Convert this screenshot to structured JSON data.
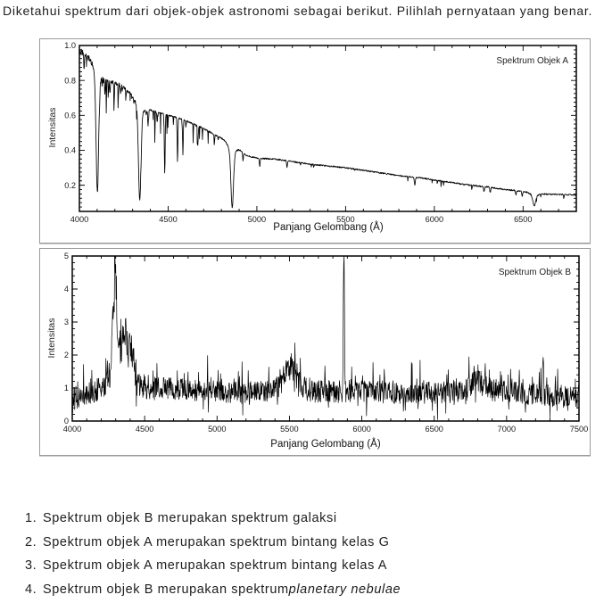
{
  "question": "Diketahui spektrum dari objek-objek astronomi sebagai berikut. Pilihlah pernyataan yang benar.",
  "colors": {
    "trace": "#000000",
    "frame": "#000000",
    "panel_border": "#9a9a9a",
    "text": "#1c1c1c"
  },
  "options": [
    {
      "num": "1.",
      "text": "Spektrum objek B merupakan spektrum galaksi",
      "italic": ""
    },
    {
      "num": "2.",
      "text": "Spektrum objek A merupakan spektrum bintang kelas G",
      "italic": ""
    },
    {
      "num": "3.",
      "text": "Spektrum objek A merupakan spektrum bintang kelas A",
      "italic": ""
    },
    {
      "num": "4.",
      "text": "Spektrum objek B merupakan spektrum ",
      "italic": "planetary nebulae"
    }
  ],
  "chart_data": [
    {
      "type": "line",
      "kind": "stellar_absorption",
      "legend": "Spektrum Objek A",
      "xlabel": "Panjang Gelombang (Å)",
      "ylabel": "Intensitas",
      "xlim": [
        4000,
        6800
      ],
      "ylim": [
        0.05,
        1.0
      ],
      "x_major_values": [
        4000,
        4500,
        5000,
        5500,
        6000,
        6500
      ],
      "x_tick_labels": [
        "4000",
        "4500",
        "5000",
        "5500",
        "6000",
        "6500"
      ],
      "x_minor_step": 100,
      "y_major_values": [
        0.2,
        0.4,
        0.6,
        0.8,
        1.0
      ],
      "y_tick_labels": [
        "0.2",
        "0.4",
        "0.6",
        "0.8",
        "1.0"
      ],
      "y_minor_step": 0.025,
      "sample_step": 1.8,
      "continuum": [
        [
          4000,
          0.97
        ],
        [
          4040,
          0.94
        ],
        [
          4070,
          0.92
        ],
        [
          4150,
          0.8
        ],
        [
          4220,
          0.78
        ],
        [
          4260,
          0.75
        ],
        [
          4300,
          0.72
        ],
        [
          4380,
          0.635
        ],
        [
          4420,
          0.625
        ],
        [
          4500,
          0.6
        ],
        [
          4560,
          0.585
        ],
        [
          4620,
          0.56
        ],
        [
          4700,
          0.525
        ],
        [
          4760,
          0.49
        ],
        [
          4820,
          0.46
        ],
        [
          4880,
          0.43
        ],
        [
          4940,
          0.37
        ],
        [
          5000,
          0.355
        ],
        [
          5100,
          0.35
        ],
        [
          5200,
          0.335
        ],
        [
          5300,
          0.32
        ],
        [
          5400,
          0.31
        ],
        [
          5500,
          0.3
        ],
        [
          5600,
          0.285
        ],
        [
          5700,
          0.27
        ],
        [
          5800,
          0.255
        ],
        [
          5900,
          0.245
        ],
        [
          6000,
          0.23
        ],
        [
          6100,
          0.215
        ],
        [
          6200,
          0.2
        ],
        [
          6300,
          0.19
        ],
        [
          6400,
          0.175
        ],
        [
          6500,
          0.165
        ],
        [
          6600,
          0.15
        ],
        [
          6700,
          0.147
        ],
        [
          6800,
          0.144
        ]
      ],
      "absorption_lines": [
        {
          "name": "H-delta",
          "center": 4101,
          "depth": 0.65,
          "sigma": 7,
          "wing": 0.06,
          "wing_sigma": 22
        },
        {
          "name": "H-gamma",
          "center": 4340,
          "depth": 0.51,
          "sigma": 7,
          "wing": 0.05,
          "wing_sigma": 22
        },
        {
          "name": "H-beta",
          "center": 4861,
          "depth": 0.31,
          "sigma": 7,
          "wing": 0.057,
          "wing_sigma": 20
        },
        {
          "name": "H-alpha",
          "center": 6563,
          "depth": 0.06,
          "sigma": 8,
          "wing": 0.013,
          "wing_sigma": 22
        },
        {
          "name": "HeI-4026",
          "center": 4026,
          "depth": 0.08,
          "sigma": 2
        },
        {
          "name": "FeI-4144",
          "center": 4144,
          "depth": 0.09,
          "sigma": 2
        },
        {
          "name": "CaI-4172",
          "center": 4172,
          "depth": 0.06,
          "sigma": 2
        },
        {
          "name": "4233",
          "center": 4233,
          "depth": 0.05,
          "sigma": 2
        },
        {
          "name": "4387",
          "center": 4387,
          "depth": 0.09,
          "sigma": 2
        },
        {
          "name": "4438",
          "center": 4438,
          "depth": 0.06,
          "sigma": 2
        },
        {
          "name": "MgII-4481",
          "center": 4481,
          "depth": 0.34,
          "sigma": 2.2
        },
        {
          "name": "4553",
          "center": 4553,
          "depth": 0.25,
          "sigma": 2
        },
        {
          "name": "4583",
          "center": 4583,
          "depth": 0.18,
          "sigma": 2
        },
        {
          "name": "4668",
          "center": 4668,
          "depth": 0.08,
          "sigma": 2
        },
        {
          "name": "4922",
          "center": 4922,
          "depth": 0.05,
          "sigma": 2
        },
        {
          "name": "5016",
          "center": 5016,
          "depth": 0.05,
          "sigma": 2
        },
        {
          "name": "5170",
          "center": 5170,
          "depth": 0.035,
          "sigma": 2.5
        },
        {
          "name": "NaD-5890",
          "center": 5890,
          "depth": 0.045,
          "sigma": 3
        },
        {
          "name": "6280",
          "center": 6280,
          "depth": 0.03,
          "sigma": 2.5
        },
        {
          "name": "6315",
          "center": 6315,
          "depth": 0.03,
          "sigma": 2.5
        },
        {
          "name": "6460",
          "center": 6460,
          "depth": 0.025,
          "sigma": 2.5
        },
        {
          "name": "6495",
          "center": 6495,
          "depth": 0.03,
          "sigma": 2.5
        }
      ],
      "noise": {
        "seed": 1337421,
        "base_amp": 0.004,
        "blue_amp": 0.015
      }
    },
    {
      "type": "line",
      "kind": "noisy_emission",
      "legend": "Spektrum Objek B",
      "xlabel": "Panjang Gelombang (Å)",
      "ylabel": "Intensitas",
      "xlim": [
        4000,
        7500
      ],
      "ylim": [
        0,
        5
      ],
      "x_major_values": [
        4000,
        4500,
        5000,
        5500,
        6000,
        6500,
        7000,
        7500
      ],
      "x_tick_labels": [
        "4000",
        "4500",
        "5000",
        "5500",
        "6000",
        "6500",
        "7000",
        "7500"
      ],
      "x_minor_step": 100,
      "y_major_values": [
        0,
        1,
        2,
        3,
        4,
        5
      ],
      "y_tick_labels": [
        "0",
        "1",
        "2",
        "3",
        "4",
        "5"
      ],
      "y_minor_step": 0.2,
      "sample_step": 2.5,
      "baseline": [
        [
          4000,
          0.62
        ],
        [
          4080,
          0.85
        ],
        [
          4200,
          1.0
        ],
        [
          4450,
          1.05
        ],
        [
          4650,
          0.98
        ],
        [
          4900,
          0.92
        ],
        [
          5150,
          0.86
        ],
        [
          5450,
          0.92
        ],
        [
          5700,
          0.9
        ],
        [
          6000,
          0.9
        ],
        [
          6350,
          0.84
        ],
        [
          6600,
          0.88
        ],
        [
          6850,
          0.95
        ],
        [
          7050,
          0.85
        ],
        [
          7300,
          0.78
        ],
        [
          7500,
          0.7
        ]
      ],
      "emission_lines": [
        {
          "center": 4293,
          "height": 2.55,
          "sigma": 13
        },
        {
          "center": 4330,
          "height": 1.2,
          "sigma": 45
        },
        {
          "center": 4363,
          "height": 0.95,
          "sigma": 11
        },
        {
          "center": 4405,
          "height": 0.9,
          "sigma": 16
        },
        {
          "center": 5505,
          "height": 0.72,
          "sigma": 48
        },
        {
          "center": 5876,
          "height": 4.7,
          "sigma": 3.5
        },
        {
          "center": 6790,
          "height": 0.28,
          "sigma": 45
        },
        {
          "center": 7252,
          "height": 1.45,
          "sigma": 3.2
        }
      ],
      "noise": {
        "seed": 987654321,
        "amp": 0.34
      }
    }
  ]
}
